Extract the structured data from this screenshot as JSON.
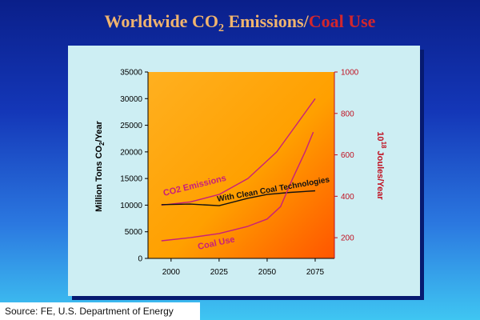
{
  "title": {
    "part1": "Worldwide CO",
    "sub": "2",
    "part2": " Emissions/",
    "part3": "Coal Use"
  },
  "source": "Source: FE, U.S. Department of Energy",
  "colors": {
    "title_left": "#f0b46e",
    "title_right": "#d3262d",
    "co2_line": "#c8207a",
    "coal_line": "#c8207a",
    "clean_line": "#111111",
    "right_axis": "#c01020"
  },
  "chart_data": {
    "type": "line",
    "x_ticks": [
      2000,
      2025,
      2050,
      2075
    ],
    "xlim": [
      1988,
      2085
    ],
    "y_left": {
      "label": "Million Tons CO",
      "label_sub": "2",
      "label_end": "/Year",
      "ticks": [
        0,
        5000,
        10000,
        15000,
        20000,
        25000,
        30000,
        35000
      ],
      "lim": [
        0,
        35000
      ]
    },
    "y_right": {
      "label_pre": "10",
      "label_sup": "18",
      "label_post": " Joules/Year",
      "ticks": [
        200,
        400,
        600,
        800,
        1000
      ],
      "lim": [
        100,
        1000
      ]
    },
    "series": [
      {
        "name": "CO2 Emissions",
        "axis": "left",
        "x": [
          1995,
          2010,
          2025,
          2040,
          2055,
          2065,
          2075
        ],
        "y": [
          10000,
          10600,
          12000,
          15000,
          20000,
          25000,
          30000
        ]
      },
      {
        "name": "With Clean Coal Technologies",
        "axis": "left",
        "x": [
          1995,
          2010,
          2025,
          2040,
          2050,
          2062,
          2075
        ],
        "y": [
          10100,
          10200,
          9900,
          11300,
          12000,
          12400,
          12700
        ]
      },
      {
        "name": "Coal Use",
        "axis": "right",
        "x": [
          1995,
          2010,
          2025,
          2040,
          2050,
          2057,
          2063,
          2070,
          2074
        ],
        "y": [
          185,
          200,
          220,
          255,
          290,
          350,
          480,
          620,
          710
        ]
      }
    ]
  }
}
